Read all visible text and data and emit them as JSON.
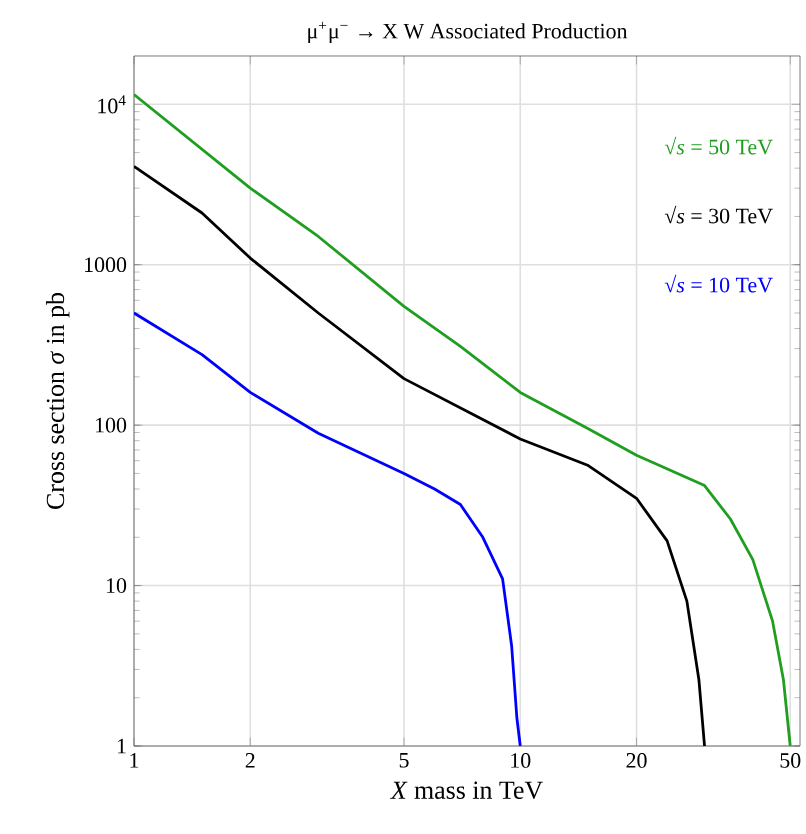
{
  "chart_data": {
    "type": "line",
    "title": "μ$^{+}$μ$^{−}$ → X W  Associated Production",
    "xlabel": "*X* mass in TeV",
    "ylabel": "Cross section *σ* in pb",
    "log": "xy",
    "grid": true,
    "legend": "top right",
    "xlim": [
      1,
      53
    ],
    "ylim": [
      1,
      20000
    ],
    "xticks": [
      1,
      2,
      5,
      10,
      20,
      50
    ],
    "yticks": [
      1,
      10,
      100,
      1000,
      {
        "value": 10000,
        "label": "10$^{4}$"
      }
    ],
    "series": [
      {
        "name": "√*s* = 50 TeV",
        "color": "#1f9e1f",
        "x": [
          1,
          2,
          3,
          5,
          7,
          10,
          15,
          20,
          30,
          35,
          40,
          45,
          48,
          50
        ],
        "values": [
          11500,
          3000,
          1500,
          550,
          310,
          160,
          95,
          65,
          42,
          26,
          14.5,
          6,
          2.6,
          1
        ]
      },
      {
        "name": "√*s* = 30 TeV",
        "color": "#000000",
        "x": [
          1,
          1.5,
          2,
          3,
          5,
          10,
          15,
          20,
          24,
          27,
          29,
          30
        ],
        "values": [
          4100,
          2100,
          1100,
          500,
          195,
          82,
          56,
          35,
          19,
          8,
          2.6,
          1
        ]
      },
      {
        "name": "√*s* = 10 TeV",
        "color": "#0000ff",
        "x": [
          1,
          1.5,
          2,
          3,
          5,
          6,
          7,
          8,
          9,
          9.5,
          9.8,
          10
        ],
        "values": [
          500,
          275,
          160,
          89,
          50,
          40,
          32,
          20,
          11,
          4.2,
          1.5,
          1
        ]
      }
    ]
  }
}
